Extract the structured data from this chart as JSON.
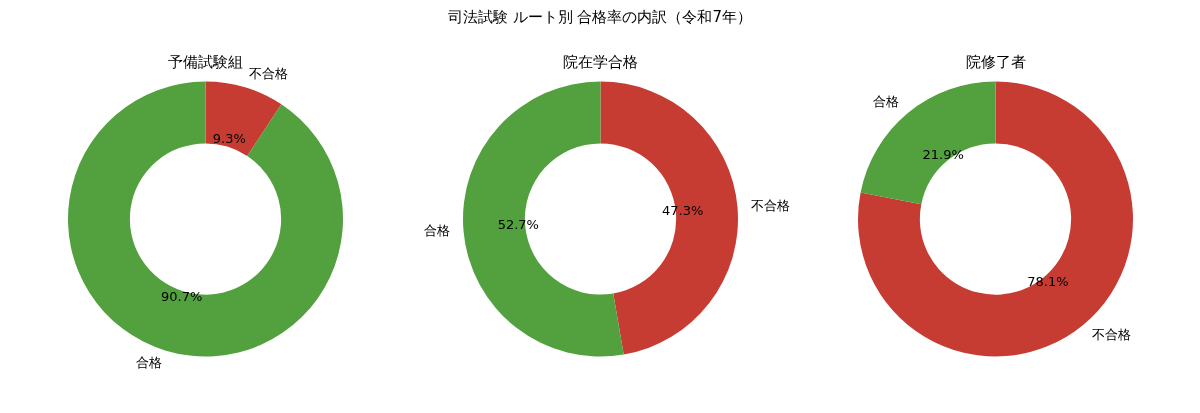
{
  "chart_data": [
    {
      "type": "donut",
      "title": "予備試験組",
      "annotations": [
        "司法試験 ルート別 合格率の内訳（令和7年）"
      ],
      "categories": [
        "不合格",
        "合格"
      ],
      "values": [
        9.3,
        90.7
      ],
      "value_labels": [
        "9.3%",
        "90.7%"
      ],
      "colors": [
        "#c63c33",
        "#52a03e"
      ],
      "legend": false
    },
    {
      "type": "donut",
      "title": "院在学合格",
      "categories": [
        "不合格",
        "合格"
      ],
      "values": [
        47.3,
        52.7
      ],
      "value_labels": [
        "47.3%",
        "52.7%"
      ],
      "colors": [
        "#c63c33",
        "#52a03e"
      ],
      "legend": false
    },
    {
      "type": "donut",
      "title": "院修了者",
      "categories": [
        "不合格",
        "合格"
      ],
      "values": [
        78.1,
        21.9
      ],
      "value_labels": [
        "78.1%",
        "21.9%"
      ],
      "colors": [
        "#c63c33",
        "#52a03e"
      ],
      "legend": false
    }
  ]
}
